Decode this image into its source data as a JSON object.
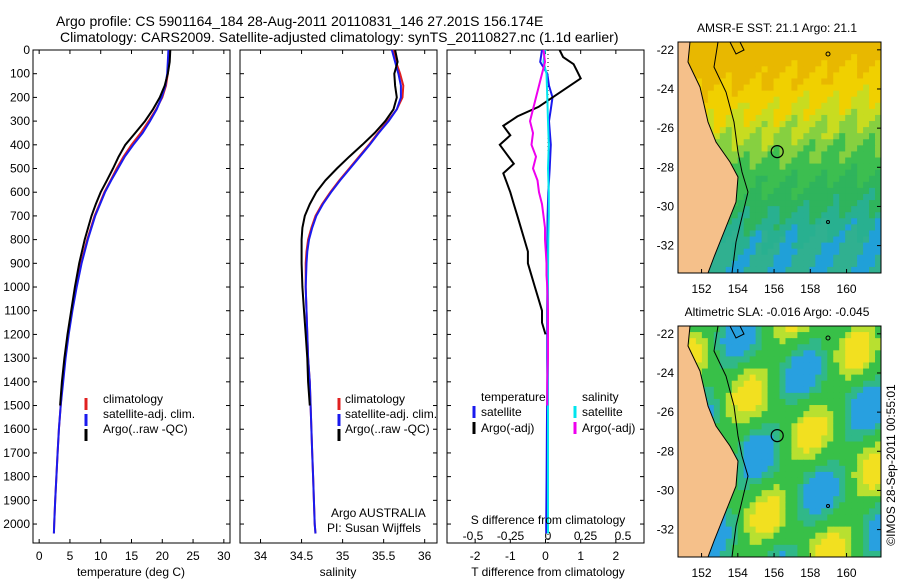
{
  "header": {
    "line1": "Argo profile: CS 5901164_184 28-Aug-2011 20110831_146 27.201S 156.174E",
    "line2": "Climatology: CARS2009. Satellite-adjusted climatology: synTS_20110827.nc (1.1d earlier)"
  },
  "colors": {
    "climatology": "#e02020",
    "satellite": "#1a1aee",
    "argo": "#000000",
    "sal_satellite": "#00e5ee",
    "sal_argo": "#ee00ee",
    "land": "#f5c08a"
  },
  "chart_data": [
    {
      "id": "temperature",
      "type": "line",
      "xlabel": "temperature (deg C)",
      "ylabel": "",
      "xlim": [
        -1,
        31
      ],
      "ylim": [
        2080,
        0
      ],
      "xticks": [
        "0",
        "5",
        "10",
        "15",
        "20",
        "25",
        "30"
      ],
      "yticks": [
        "0",
        "100",
        "200",
        "300",
        "400",
        "500",
        "600",
        "700",
        "800",
        "900",
        "1000",
        "1100",
        "1200",
        "1300",
        "1400",
        "1500",
        "1600",
        "1700",
        "1800",
        "1900",
        "2000"
      ],
      "legend": {
        "position": "bottom-center",
        "entries": [
          "climatology",
          "satellite-adj. clim.",
          "Argo(..raw -QC)"
        ]
      },
      "series": [
        {
          "name": "climatology",
          "color": "#e02020",
          "depth": [
            0,
            50,
            100,
            150,
            200,
            250,
            300,
            350,
            400,
            450,
            500,
            550,
            600,
            650,
            700,
            800,
            900,
            1000,
            1100,
            1200,
            1300,
            1400,
            1500,
            1600,
            1700,
            1800,
            1900,
            2000,
            2040
          ],
          "values": [
            21.2,
            21.1,
            20.9,
            20.6,
            20.0,
            19.0,
            17.8,
            16.5,
            15.0,
            13.7,
            12.6,
            11.6,
            10.6,
            9.8,
            9.0,
            7.8,
            6.8,
            6.0,
            5.3,
            4.7,
            4.2,
            3.8,
            3.5,
            3.2,
            3.0,
            2.8,
            2.6,
            2.45,
            2.4
          ]
        },
        {
          "name": "satellite-adj. clim.",
          "color": "#1a1aee",
          "depth": [
            0,
            50,
            100,
            150,
            200,
            250,
            300,
            350,
            400,
            450,
            500,
            550,
            600,
            650,
            700,
            800,
            900,
            1000,
            1100,
            1200,
            1300,
            1400,
            1500,
            1600,
            1700,
            1800,
            1900,
            2000,
            2040
          ],
          "values": [
            21.0,
            20.9,
            20.8,
            20.5,
            19.9,
            19.1,
            18.0,
            16.8,
            15.3,
            13.9,
            12.8,
            11.7,
            10.7,
            9.9,
            9.1,
            7.9,
            6.9,
            6.1,
            5.4,
            4.8,
            4.3,
            3.9,
            3.5,
            3.2,
            3.0,
            2.8,
            2.6,
            2.45,
            2.4
          ]
        },
        {
          "name": "Argo(..raw -QC)",
          "color": "#000000",
          "depth": [
            0,
            50,
            100,
            150,
            200,
            250,
            300,
            350,
            400,
            450,
            500,
            550,
            600,
            650,
            700,
            800,
            900,
            1000,
            1100,
            1200,
            1300,
            1400,
            1500
          ],
          "values": [
            21.3,
            21.2,
            20.9,
            20.4,
            19.6,
            18.5,
            17.2,
            15.6,
            14.0,
            12.9,
            12.0,
            11.0,
            10.0,
            9.2,
            8.5,
            7.4,
            6.5,
            5.8,
            5.2,
            4.6,
            4.1,
            3.7,
            3.4
          ]
        }
      ]
    },
    {
      "id": "salinity",
      "type": "line",
      "xlabel": "salinity",
      "xlim": [
        33.75,
        36.15
      ],
      "ylim": [
        2080,
        0
      ],
      "xticks": [
        "34",
        "34.5",
        "35",
        "35.5",
        "36"
      ],
      "legend": {
        "position": "bottom-center",
        "entries": [
          "climatology",
          "satellite-adj. clim.",
          "Argo(..raw -QC)"
        ]
      },
      "annotation": {
        "line1": "Argo AUSTRALIA",
        "line2": "PI: Susan Wijffels"
      },
      "series": [
        {
          "name": "climatology",
          "color": "#e02020",
          "depth": [
            0,
            50,
            100,
            150,
            200,
            250,
            300,
            350,
            400,
            450,
            500,
            550,
            600,
            650,
            700,
            750,
            800,
            850,
            900,
            1000,
            1100,
            1200,
            1300,
            1400,
            1500,
            1600,
            1700,
            1800,
            1900,
            2000,
            2040
          ],
          "values": [
            35.62,
            35.65,
            35.7,
            35.74,
            35.73,
            35.66,
            35.55,
            35.43,
            35.32,
            35.2,
            35.08,
            34.96,
            34.85,
            34.75,
            34.67,
            34.62,
            34.58,
            34.56,
            34.55,
            34.55,
            34.56,
            34.57,
            34.58,
            34.6,
            34.61,
            34.62,
            34.63,
            34.64,
            34.65,
            34.66,
            34.67
          ]
        },
        {
          "name": "satellite-adj. clim.",
          "color": "#1a1aee",
          "depth": [
            0,
            50,
            100,
            150,
            200,
            250,
            300,
            350,
            400,
            450,
            500,
            550,
            600,
            650,
            700,
            750,
            800,
            850,
            900,
            1000,
            1100,
            1200,
            1300,
            1400,
            1500,
            1600,
            1700,
            1800,
            1900,
            2000,
            2040
          ],
          "values": [
            35.6,
            35.64,
            35.68,
            35.71,
            35.71,
            35.66,
            35.56,
            35.44,
            35.33,
            35.21,
            35.09,
            34.97,
            34.86,
            34.76,
            34.68,
            34.63,
            34.59,
            34.57,
            34.56,
            34.55,
            34.56,
            34.57,
            34.58,
            34.6,
            34.61,
            34.62,
            34.63,
            34.64,
            34.65,
            34.66,
            34.67
          ]
        },
        {
          "name": "Argo(..raw -QC)",
          "color": "#000000",
          "depth": [
            0,
            50,
            100,
            150,
            200,
            250,
            300,
            350,
            400,
            450,
            500,
            550,
            600,
            650,
            700,
            750,
            800,
            850,
            900,
            1000,
            1100,
            1200,
            1300,
            1400,
            1500
          ],
          "values": [
            35.64,
            35.67,
            35.63,
            35.64,
            35.66,
            35.62,
            35.52,
            35.39,
            35.24,
            35.08,
            34.93,
            34.79,
            34.68,
            34.6,
            34.54,
            34.51,
            34.5,
            34.5,
            34.5,
            34.51,
            34.53,
            34.55,
            34.57,
            34.58,
            34.6
          ]
        }
      ]
    },
    {
      "id": "difference",
      "type": "line",
      "xlabel": "T difference from climatology",
      "xlabel_top": "S difference from climatology",
      "xlim": [
        -2.8,
        2.8
      ],
      "ylim": [
        2080,
        0
      ],
      "xticks": [
        "-2",
        "-1",
        "0",
        "1",
        "2"
      ],
      "sticks": [
        "-0.5",
        "-0.25",
        "0",
        "0.25",
        "0.5"
      ],
      "legend": {
        "position": "bottom",
        "temp_title": "temperature",
        "sal_title": "salinity",
        "entries": [
          "satellite",
          "Argo(-adj)",
          "satellite",
          "Argo(-adj)"
        ]
      },
      "series": [
        {
          "name": "T satellite",
          "color": "#1a1aee",
          "depth": [
            0,
            50,
            100,
            150,
            200,
            250,
            300,
            400,
            500,
            600,
            700,
            800,
            900,
            1000,
            1200,
            1400,
            1600,
            1800,
            2000,
            2040
          ],
          "values": [
            -0.1,
            -0.15,
            0.05,
            0.1,
            0.2,
            0.15,
            0.1,
            0.15,
            0.12,
            0.08,
            0.06,
            0.05,
            0.05,
            0.05,
            0.05,
            0.05,
            0.04,
            0.03,
            0.02,
            0.02
          ]
        },
        {
          "name": "T Argo(-adj)",
          "color": "#000000",
          "depth": [
            0,
            30,
            60,
            90,
            120,
            160,
            200,
            240,
            280,
            320,
            360,
            400,
            440,
            480,
            520,
            560,
            600,
            650,
            700,
            750,
            800,
            850,
            900,
            950,
            1000,
            1050,
            1100,
            1150,
            1200
          ],
          "values": [
            0.4,
            0.5,
            0.8,
            0.9,
            1.0,
            0.6,
            0.2,
            -0.2,
            -0.8,
            -1.2,
            -1.0,
            -1.3,
            -1.1,
            -0.9,
            -1.2,
            -1.1,
            -1.0,
            -0.9,
            -0.8,
            -0.7,
            -0.6,
            -0.5,
            -0.5,
            -0.4,
            -0.3,
            -0.2,
            -0.1,
            -0.1,
            0.0
          ]
        },
        {
          "name": "S satellite",
          "color": "#00e5ee",
          "depth": [
            0,
            50,
            100,
            200,
            300,
            400,
            500,
            600,
            700,
            800,
            900,
            1000,
            1200,
            1400,
            1600,
            1800,
            2000,
            2040
          ],
          "values": [
            -0.02,
            -0.03,
            -0.01,
            -0.005,
            0.0,
            0.005,
            0.0,
            0.005,
            0.005,
            0.002,
            0.001,
            0.0,
            0.0,
            0.0,
            0.0,
            0.0,
            0.0,
            0.0
          ]
        },
        {
          "name": "S Argo(-adj)",
          "color": "#ee00ee",
          "depth": [
            0,
            50,
            100,
            150,
            200,
            250,
            300,
            350,
            400,
            450,
            500,
            550,
            600,
            650,
            700,
            750,
            800,
            850,
            900,
            950,
            1000,
            1100,
            1200,
            1300,
            1400,
            1500
          ],
          "values": [
            -0.03,
            -0.02,
            -0.04,
            -0.06,
            -0.08,
            -0.1,
            -0.12,
            -0.1,
            -0.11,
            -0.08,
            -0.1,
            -0.07,
            -0.06,
            -0.04,
            -0.03,
            -0.02,
            -0.02,
            -0.015,
            -0.01,
            -0.01,
            -0.005,
            0.0,
            0.0,
            0.0,
            -0.005,
            -0.005
          ]
        }
      ]
    },
    {
      "id": "sst_map",
      "type": "heatmap",
      "title": "AMSR-E SST: 21.1 Argo: 21.1",
      "xlim": [
        150.7,
        161.9
      ],
      "ylim": [
        -33.4,
        -21.6
      ],
      "xticks": [
        "152",
        "154",
        "156",
        "158",
        "160"
      ],
      "yticks": [
        "-22",
        "-24",
        "-26",
        "-28",
        "-30",
        "-32"
      ],
      "marker": {
        "lon": 156.174,
        "lat": -27.201
      }
    },
    {
      "id": "sla_map",
      "type": "heatmap",
      "title": "Altimetric SLA: -0.016 Argo: -0.045",
      "xlim": [
        150.7,
        161.9
      ],
      "ylim": [
        -33.4,
        -21.6
      ],
      "xticks": [
        "152",
        "154",
        "156",
        "158",
        "160"
      ],
      "yticks": [
        "-22",
        "-24",
        "-26",
        "-28",
        "-30",
        "-32"
      ],
      "marker": {
        "lon": 156.174,
        "lat": -27.201
      }
    }
  ],
  "credit": "©IMOS 28-Sep-2011 00:55:01"
}
